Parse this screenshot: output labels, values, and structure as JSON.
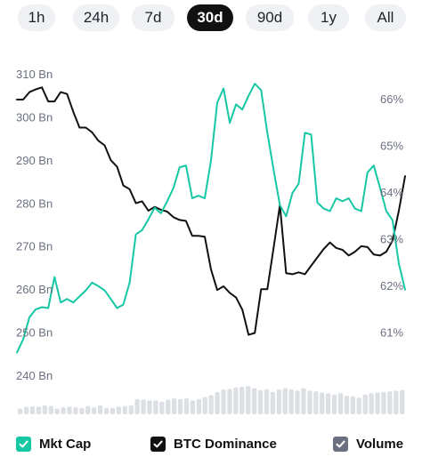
{
  "timeframe_tabs": [
    {
      "label": "1h",
      "active": false
    },
    {
      "label": "24h",
      "active": false
    },
    {
      "label": "7d",
      "active": false
    },
    {
      "label": "30d",
      "active": true
    },
    {
      "label": "90d",
      "active": false
    },
    {
      "label": "1y",
      "active": false
    },
    {
      "label": "All",
      "active": false
    }
  ],
  "chart_data": {
    "type": "line",
    "title": "",
    "grid": false,
    "y_left": {
      "ticks": [
        "310 Bn",
        "300 Bn",
        "290 Bn",
        "280 Bn",
        "270 Bn",
        "260 Bn",
        "250 Bn",
        "240 Bn"
      ],
      "values": [
        310,
        300,
        290,
        280,
        270,
        260,
        250,
        240
      ],
      "range": [
        240,
        310
      ],
      "unit": "Bn"
    },
    "y_right": {
      "ticks": [
        "66%",
        "65%",
        "64%",
        "63%",
        "62%",
        "61%"
      ],
      "values": [
        66,
        65,
        64,
        63,
        62,
        61
      ],
      "range": [
        61,
        66
      ]
    },
    "series": [
      {
        "name": "Mkt Cap",
        "color": "#16c7a4",
        "axis": "left",
        "values": [
          245.5,
          248.5,
          253.7,
          255.5,
          256.0,
          255.8,
          263.0,
          257.1,
          257.9,
          257.1,
          258.5,
          259.9,
          261.7,
          260.9,
          259.9,
          257.9,
          255.8,
          256.6,
          261.7,
          272.9,
          273.9,
          276.4,
          279.1,
          277.8,
          280.6,
          283.7,
          288.5,
          288.9,
          281.3,
          281.9,
          281.3,
          290.1,
          303.5,
          306.8,
          298.8,
          303.1,
          301.9,
          305.1,
          307.9,
          306.4,
          296.5,
          287.9,
          279.7,
          277.1,
          282.5,
          284.7,
          296.5,
          296.1,
          280.3,
          278.9,
          278.3,
          281.3,
          280.6,
          281.3,
          278.9,
          278.3,
          287.3,
          288.9,
          283.7,
          278.3,
          276.2,
          266.1,
          260.1
        ]
      },
      {
        "name": "BTC Dominance",
        "color": "#111111",
        "axis": "right",
        "values": [
          66.0,
          66.0,
          66.16,
          66.22,
          66.26,
          65.96,
          65.96,
          66.16,
          66.12,
          65.74,
          65.4,
          65.4,
          65.3,
          65.12,
          65.02,
          64.7,
          64.56,
          64.16,
          64.08,
          63.78,
          63.82,
          63.62,
          63.7,
          63.64,
          63.6,
          63.48,
          63.42,
          63.4,
          63.08,
          63.08,
          63.06,
          62.36,
          61.92,
          62.0,
          61.86,
          61.76,
          61.5,
          60.96,
          61.0,
          61.94,
          61.94,
          62.82,
          63.74,
          62.28,
          62.26,
          62.3,
          62.26,
          62.44,
          62.62,
          62.8,
          62.94,
          62.82,
          62.78,
          62.66,
          62.74,
          62.86,
          62.84,
          62.68,
          62.66,
          62.74,
          62.98,
          63.62,
          64.36
        ]
      },
      {
        "name": "Volume",
        "color": "#6b7080",
        "values": [
          18,
          24,
          25,
          24,
          28,
          26,
          18,
          22,
          24,
          22,
          20,
          26,
          22,
          28,
          20,
          20,
          24,
          26,
          28,
          48,
          46,
          44,
          44,
          40,
          46,
          50,
          48,
          50,
          44,
          48,
          54,
          60,
          70,
          78,
          80,
          84,
          86,
          88,
          82,
          76,
          78,
          70,
          78,
          82,
          78,
          74,
          82,
          74,
          72,
          68,
          66,
          62,
          66,
          58,
          56,
          52,
          62,
          66,
          68,
          70,
          72,
          74,
          76
        ]
      }
    ],
    "legend": [
      {
        "label": "Mkt Cap",
        "color": "#16c7a4",
        "checked": true
      },
      {
        "label": "BTC Dominance",
        "color": "#111111",
        "checked": true
      },
      {
        "label": "Volume",
        "color": "#6b7080",
        "checked": true
      }
    ],
    "legend_position": "bottom"
  }
}
